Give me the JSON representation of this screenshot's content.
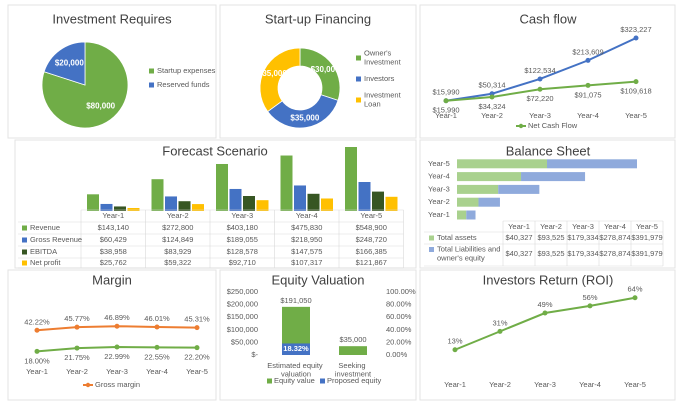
{
  "chart_data": [
    {
      "type": "pie",
      "title": "Investment Requires",
      "categories": [
        "Startup expenses",
        "Reserved funds"
      ],
      "values": [
        80000,
        20000
      ],
      "value_labels": [
        "$80,000",
        "$20,000"
      ],
      "colors": [
        "#70ad47",
        "#4472c4"
      ]
    },
    {
      "type": "doughnut",
      "title": "Start-up Financing",
      "categories": [
        "Owner's Investment",
        "Investors",
        "Investment Loan"
      ],
      "values": [
        30000,
        35000,
        35000
      ],
      "value_labels": [
        "$30,000",
        "$35,000",
        "$35,000"
      ],
      "colors": [
        "#70ad47",
        "#4472c4",
        "#ffc000"
      ]
    },
    {
      "type": "line",
      "title": "Cash flow",
      "categories": [
        "Year-1",
        "Year-2",
        "Year-3",
        "Year-4",
        "Year-5"
      ],
      "series": [
        {
          "color": "#4472c4",
          "values": [
            15990,
            50314,
            122534,
            213609,
            323227
          ],
          "value_labels": [
            "$15,990",
            "$50,314",
            "$122,534",
            "$213,609",
            "$323,227"
          ]
        },
        {
          "name": "Net Cash Flow",
          "color": "#70ad47",
          "values": [
            15990,
            34324,
            72220,
            91075,
            109618
          ],
          "value_labels": [
            "$15,990",
            "$34,324",
            "$72,220",
            "$91,075",
            "$109,618"
          ]
        }
      ]
    },
    {
      "type": "bar",
      "title": "Forecast Scenario",
      "data_table": true,
      "categories": [
        "Year-1",
        "Year-2",
        "Year-3",
        "Year-4",
        "Year-5"
      ],
      "series": [
        {
          "name": "Revenue",
          "color": "#70ad47",
          "values": [
            143140,
            272800,
            403180,
            475830,
            548900
          ],
          "value_labels": [
            "$143,140",
            "$272,800",
            "$403,180",
            "$475,830",
            "$548,900"
          ]
        },
        {
          "name": "Gross Revenue",
          "color": "#4472c4",
          "values": [
            60429,
            124849,
            189055,
            218950,
            248720
          ],
          "value_labels": [
            "$60,429",
            "$124,849",
            "$189,055",
            "$218,950",
            "$248,720"
          ]
        },
        {
          "name": "EBITDA",
          "color": "#375623",
          "values": [
            38958,
            83929,
            128578,
            147575,
            166385
          ],
          "value_labels": [
            "$38,958",
            "$83,929",
            "$128,578",
            "$147,575",
            "$166,385"
          ]
        },
        {
          "name": "Net profit",
          "color": "#ffc000",
          "values": [
            25762,
            59322,
            92710,
            107317,
            121867
          ],
          "value_labels": [
            "$25,762",
            "$59,322",
            "$92,710",
            "$107,317",
            "$121,867"
          ]
        }
      ]
    },
    {
      "type": "bar",
      "title": "Balance Sheet",
      "orientation": "horizontal",
      "stacked": true,
      "data_table": true,
      "categories": [
        "Year-1",
        "Year-2",
        "Year-3",
        "Year-4",
        "Year-5"
      ],
      "series": [
        {
          "name": "Total assets",
          "color": "#a9d18e",
          "values": [
            40327,
            93525,
            179334,
            278874,
            391979
          ],
          "value_labels": [
            "$40,327",
            "$93,525",
            "$179,334",
            "$278,874",
            "$391,979"
          ]
        },
        {
          "name": "Total Liabilities and owner's equity",
          "color": "#8faadc",
          "values": [
            40327,
            93525,
            179334,
            278874,
            391979
          ],
          "value_labels": [
            "$40,327",
            "$93,525",
            "$179,334",
            "$278,874",
            "$391,979"
          ]
        }
      ]
    },
    {
      "type": "line",
      "title": "Margin",
      "categories": [
        "Year-1",
        "Year-2",
        "Year-3",
        "Year-4",
        "Year-5"
      ],
      "series": [
        {
          "name": "Gross margin",
          "color": "#ed7d31",
          "values": [
            42.22,
            45.77,
            46.89,
            46.01,
            45.31
          ],
          "value_labels": [
            "42.22%",
            "45.77%",
            "46.89%",
            "46.01%",
            "45.31%"
          ]
        },
        {
          "color": "#70ad47",
          "values": [
            18.0,
            21.75,
            22.99,
            22.55,
            22.2
          ],
          "value_labels": [
            "18.00%",
            "21.75%",
            "22.99%",
            "22.55%",
            "22.20%"
          ]
        }
      ]
    },
    {
      "type": "bar",
      "title": "Equity Valuation",
      "categories": [
        "Estimated equity valuation",
        "Seeking investment"
      ],
      "ylim": [
        0,
        250000
      ],
      "yticks": [
        {
          "value": 0,
          "label": "$-"
        },
        {
          "value": 50000,
          "label": "$50,000"
        },
        {
          "value": 100000,
          "label": "$100,000"
        },
        {
          "value": 150000,
          "label": "$150,000"
        },
        {
          "value": 200000,
          "label": "$200,000"
        },
        {
          "value": 250000,
          "label": "$250,000"
        }
      ],
      "y2lim": [
        0,
        100
      ],
      "y2ticks": [
        {
          "value": 0,
          "label": "0.00%"
        },
        {
          "value": 20,
          "label": "20.00%"
        },
        {
          "value": 40,
          "label": "40.00%"
        },
        {
          "value": 60,
          "label": "60.00%"
        },
        {
          "value": 80,
          "label": "80.00%"
        },
        {
          "value": 100,
          "label": "100.00%"
        }
      ],
      "series": [
        {
          "name": "Equity value",
          "color": "#70ad47",
          "values": [
            191050,
            35000
          ],
          "value_labels": [
            "$191,050",
            "$35,000"
          ]
        },
        {
          "name": "Proposed equity",
          "color": "#4472c4",
          "axis": "y2",
          "values": [
            18.32,
            null
          ],
          "value_labels": [
            "18.32%",
            null
          ]
        }
      ]
    },
    {
      "type": "line",
      "title": "Investors Return (ROI)",
      "categories": [
        "Year-1",
        "Year-2",
        "Year-3",
        "Year-4",
        "Year-5"
      ],
      "series": [
        {
          "color": "#70ad47",
          "values": [
            13,
            31,
            49,
            56,
            64
          ],
          "value_labels": [
            "13%",
            "31%",
            "49%",
            "56%",
            "64%"
          ]
        }
      ]
    }
  ]
}
